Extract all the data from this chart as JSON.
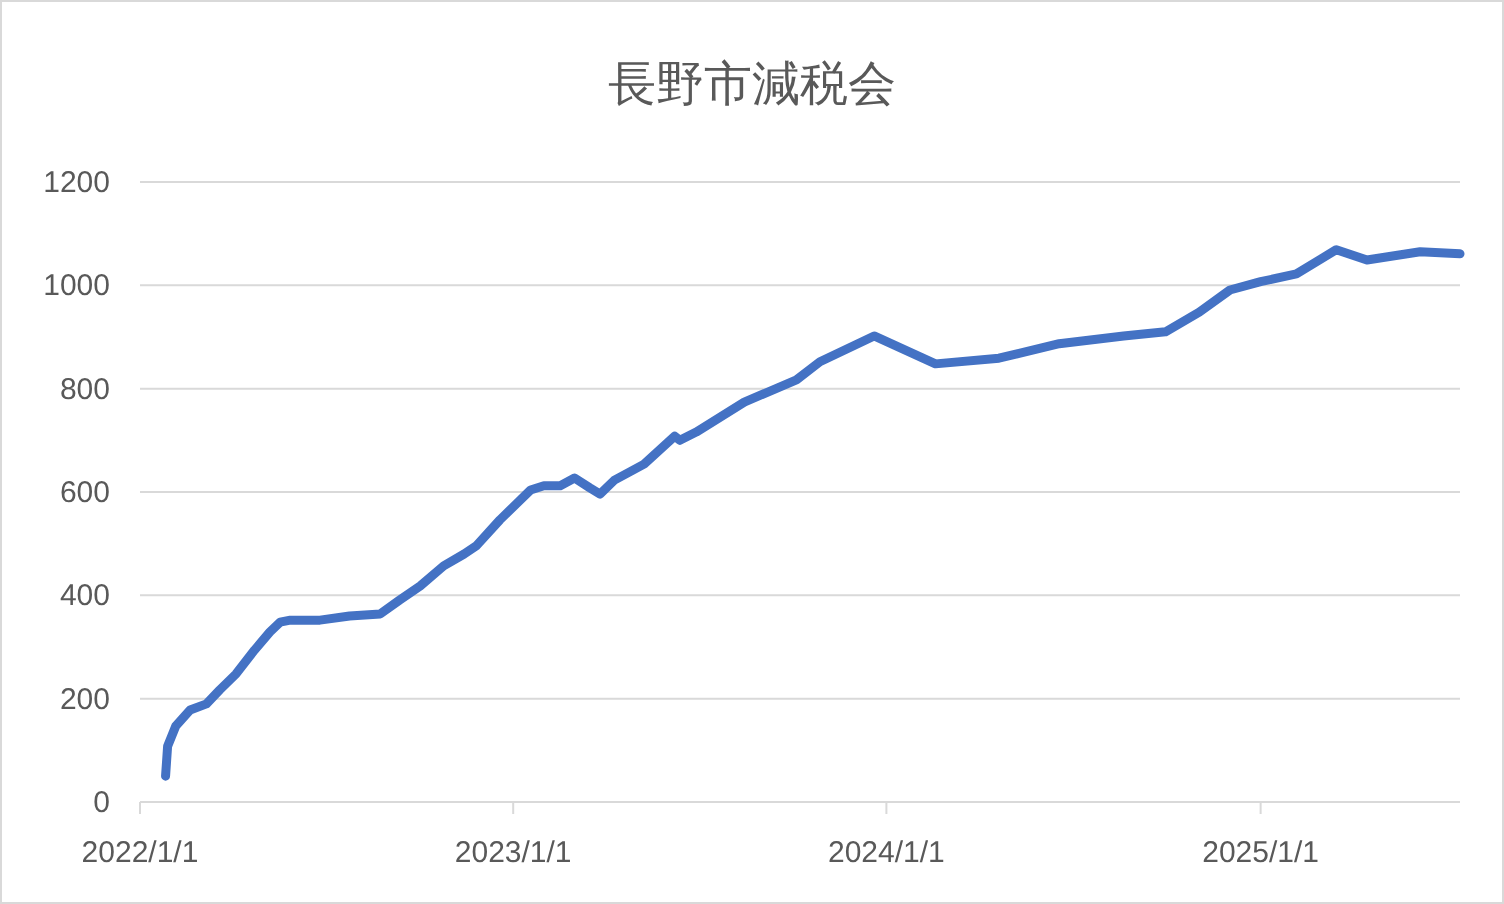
{
  "chart_data": {
    "type": "line",
    "title": "長野市減税会",
    "x": [
      "2022-01-26",
      "2022-01-28",
      "2022-02-05",
      "2022-02-19",
      "2022-03-07",
      "2022-03-20",
      "2022-04-05",
      "2022-04-23",
      "2022-05-08",
      "2022-05-18",
      "2022-05-28",
      "2022-06-26",
      "2022-07-25",
      "2022-08-24",
      "2022-09-12",
      "2022-10-02",
      "2022-10-25",
      "2022-11-14",
      "2022-11-26",
      "2022-12-19",
      "2023-01-18",
      "2023-01-31",
      "2023-02-16",
      "2023-03-02",
      "2023-03-17",
      "2023-03-27",
      "2023-04-10",
      "2023-04-25",
      "2023-05-09",
      "2023-06-08",
      "2023-06-13",
      "2023-06-29",
      "2023-08-15",
      "2023-10-05",
      "2023-10-28",
      "2023-12-20",
      "2024-02-18",
      "2024-04-20",
      "2024-06-18",
      "2024-08-20",
      "2024-09-30",
      "2024-11-02",
      "2024-12-02",
      "2025-01-01",
      "2025-02-05",
      "2025-03-16",
      "2025-04-15",
      "2025-06-06",
      "2025-07-15"
    ],
    "series": [
      {
        "color": "#4472c4",
        "values": [
          50,
          108,
          147,
          178,
          190,
          217,
          248,
          294,
          329,
          348,
          352,
          352,
          360,
          364,
          391,
          418,
          457,
          480,
          496,
          546,
          604,
          612,
          612,
          627,
          608,
          596,
          623,
          639,
          654,
          708,
          700,
          716,
          774,
          817,
          852,
          902,
          848,
          859,
          887,
          902,
          910,
          948,
          991,
          1007,
          1022,
          1069,
          1049,
          1065,
          1061
        ]
      }
    ],
    "xlim": [
      "2022-01-01",
      "2025-07-15"
    ],
    "xticks": [
      {
        "value": "2022-01-01",
        "label": "2022/1/1"
      },
      {
        "value": "2023-01-01",
        "label": "2023/1/1"
      },
      {
        "value": "2024-01-01",
        "label": "2024/1/1"
      },
      {
        "value": "2025-01-01",
        "label": "2025/1/1"
      }
    ],
    "ylim": [
      0,
      1200
    ],
    "yticks": [
      0,
      200,
      400,
      600,
      800,
      1000,
      1200
    ],
    "grid": "y",
    "marker": "none",
    "line_style": "solid"
  }
}
